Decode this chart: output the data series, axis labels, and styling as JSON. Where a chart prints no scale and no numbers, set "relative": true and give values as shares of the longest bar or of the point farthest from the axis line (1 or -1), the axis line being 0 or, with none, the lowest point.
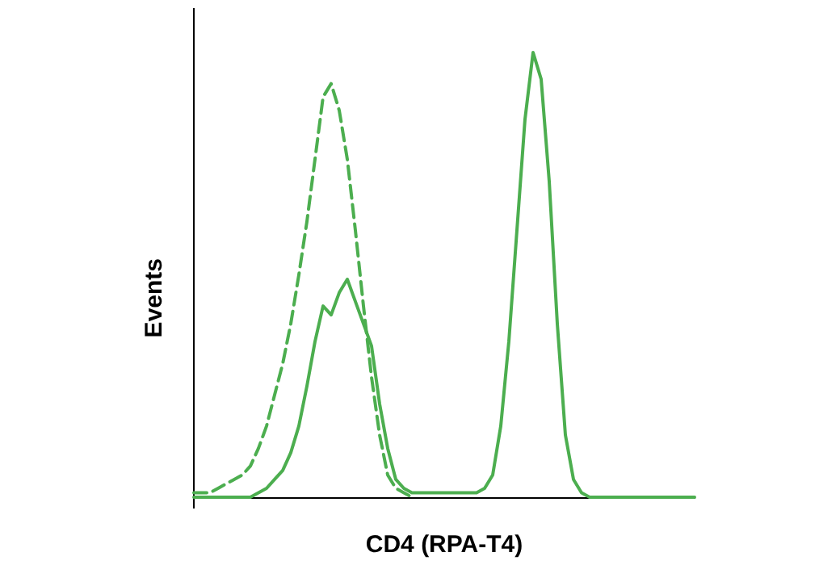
{
  "chart_data": {
    "type": "line",
    "relative": true,
    "xlabel": "CD4 (RPA-T4)",
    "ylabel": "Events",
    "grid": false,
    "categories": [
      null,
      null,
      null,
      null,
      null,
      null,
      null,
      null,
      null,
      null,
      null,
      null,
      null,
      null,
      null,
      null,
      null,
      null,
      null,
      null,
      null,
      null,
      null,
      null,
      null,
      null,
      null,
      null,
      null,
      null,
      null,
      null,
      null,
      null,
      null,
      null,
      null,
      null,
      null,
      null,
      null,
      null,
      null,
      null,
      null,
      null,
      null,
      null,
      null,
      null,
      null,
      null,
      null,
      null,
      null,
      null,
      null,
      null,
      null,
      null,
      null,
      null,
      null
    ],
    "series": [
      {
        "color": "#4cae4f",
        "line_style": "dashed",
        "values": [
          0.01,
          0.01,
          0.01,
          0.02,
          0.03,
          0.04,
          0.05,
          0.07,
          0.11,
          0.16,
          0.23,
          0.3,
          0.39,
          0.5,
          0.62,
          0.76,
          0.9,
          0.93,
          0.87,
          0.76,
          0.6,
          0.43,
          0.27,
          0.14,
          0.05,
          0.02,
          0.01,
          0,
          null,
          null,
          null,
          null,
          null,
          null,
          null,
          null,
          null,
          null,
          null,
          null,
          null,
          null,
          null,
          null,
          null,
          null,
          null,
          null,
          null,
          null,
          null,
          null,
          null,
          null,
          null,
          null,
          null,
          null,
          null,
          null,
          null,
          null,
          null
        ]
      },
      {
        "color": "#4cae4f",
        "line_style": "solid",
        "values": [
          0,
          0,
          0,
          0,
          0,
          0,
          0,
          0,
          0.01,
          0.02,
          0.04,
          0.06,
          0.1,
          0.16,
          0.25,
          0.35,
          0.43,
          0.41,
          0.46,
          0.49,
          0.44,
          0.39,
          0.34,
          0.21,
          0.11,
          0.04,
          0.02,
          0.01,
          0.01,
          0.01,
          0.01,
          0.01,
          0.01,
          0.01,
          0.01,
          0.01,
          0.02,
          0.05,
          0.16,
          0.35,
          0.6,
          0.85,
          1,
          0.94,
          0.71,
          0.39,
          0.14,
          0.04,
          0.01,
          0,
          0,
          0,
          0,
          0,
          0,
          0,
          0,
          0,
          0,
          0,
          0,
          0,
          0
        ]
      }
    ]
  }
}
